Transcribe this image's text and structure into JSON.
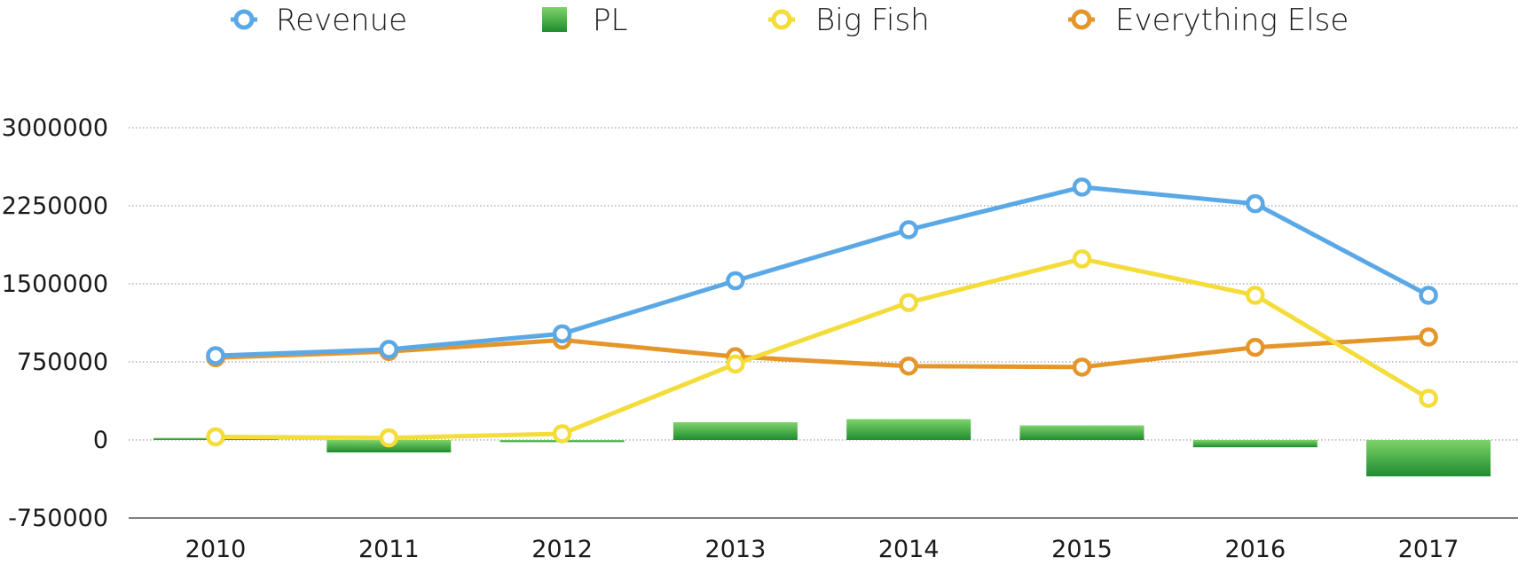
{
  "chart_data": {
    "type": "line",
    "categories": [
      "2010",
      "2011",
      "2012",
      "2013",
      "2014",
      "2015",
      "2016",
      "2017"
    ],
    "ylim": [
      -750000,
      3000000
    ],
    "yticks": [
      "3000000",
      "2250000",
      "1500000",
      "750000",
      "0",
      "-750000"
    ],
    "ytick_values": [
      3000000,
      2250000,
      1500000,
      750000,
      0,
      -750000
    ],
    "grid": true,
    "legend_position": "top",
    "series": [
      {
        "name": "Revenue",
        "kind": "line",
        "color": "#5aa9e6",
        "values": [
          810000,
          870000,
          1020000,
          1530000,
          2020000,
          2430000,
          2270000,
          1390000
        ]
      },
      {
        "name": "PL",
        "kind": "bar",
        "color": "#2e9e3a",
        "values": [
          20000,
          -120000,
          -20000,
          170000,
          200000,
          140000,
          -70000,
          -350000
        ]
      },
      {
        "name": "Big Fish",
        "kind": "line",
        "color": "#f4dc3a",
        "values": [
          30000,
          20000,
          60000,
          730000,
          1320000,
          1740000,
          1390000,
          400000
        ]
      },
      {
        "name": "Everything Else",
        "kind": "line",
        "color": "#e5962a",
        "values": [
          790000,
          850000,
          960000,
          800000,
          710000,
          700000,
          890000,
          990000
        ]
      }
    ]
  }
}
